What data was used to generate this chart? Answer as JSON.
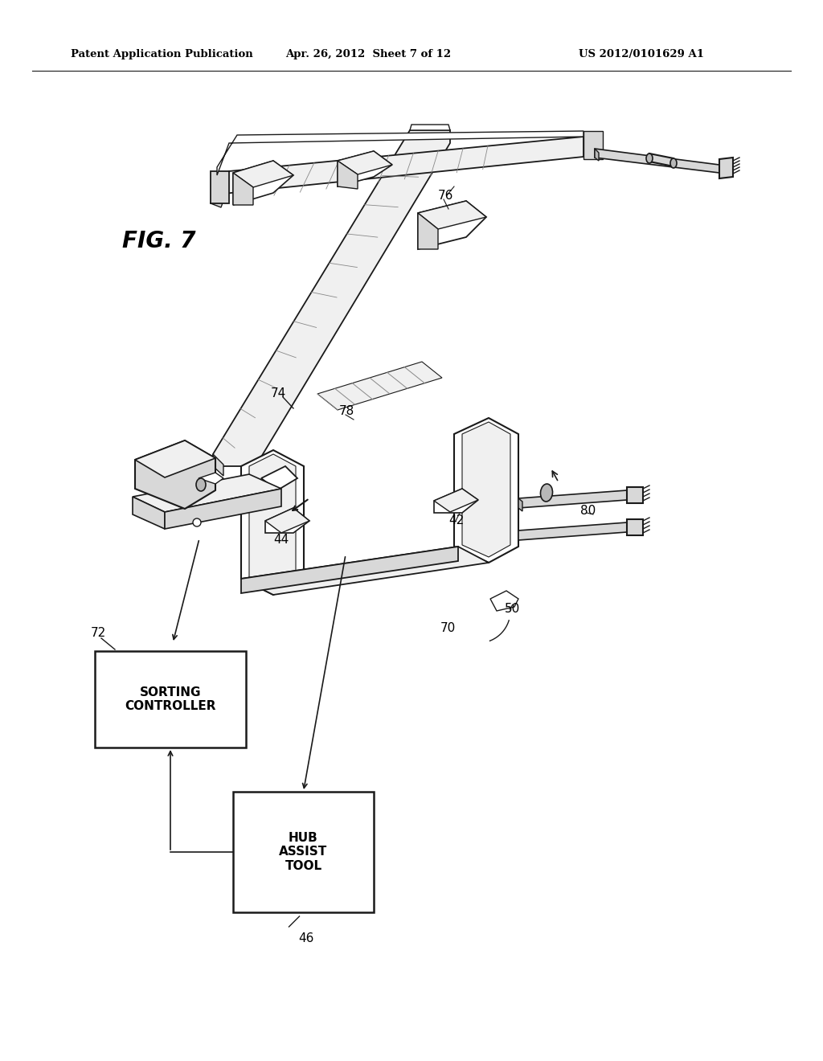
{
  "bg_color": "#ffffff",
  "header_line1": "Patent Application Publication",
  "header_line2": "Apr. 26, 2012  Sheet 7 of 12",
  "header_line3": "US 2012/0101629 A1",
  "fig_label": "FIG. 7",
  "sorting_controller_label": "SORTING\nCONTROLLER",
  "hub_assist_label": "HUB\nASSIST\nTOOL",
  "label_72": "72",
  "label_46": "46",
  "label_74": "74",
  "label_76": "76",
  "label_78": "78",
  "label_80": "80",
  "label_44": "44",
  "label_42": "42",
  "label_50": "50",
  "label_70": "70",
  "line_color": "#1a1a1a",
  "face_light": "#f0f0f0",
  "face_mid": "#d8d8d8",
  "face_dark": "#b8b8b8",
  "face_white": "#ffffff",
  "hatch_color": "#888888"
}
